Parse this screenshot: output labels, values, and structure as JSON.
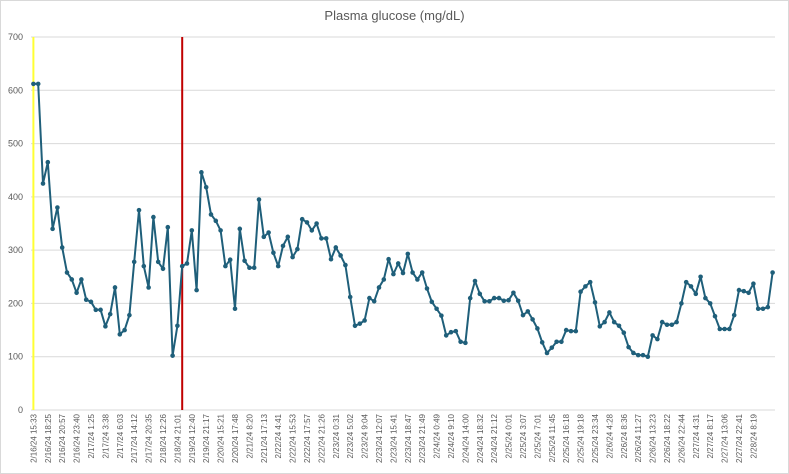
{
  "chart_data": {
    "type": "line",
    "title": "Plasma glucose (mg/dL)",
    "ylim": [
      0,
      700
    ],
    "y_ticks": [
      0,
      100,
      200,
      300,
      400,
      500,
      600,
      700
    ],
    "grid": "horizontal",
    "legend": "none",
    "x_tick_labels": [
      "2/16/24 15:33",
      "2/16/24 18:25",
      "2/16/24 20:57",
      "2/16/24 23:40",
      "2/17/24 1:25",
      "2/17/24 3:38",
      "2/17/24 6:03",
      "2/17/24 14:12",
      "2/17/24 20:35",
      "2/18/24 12:26",
      "2/18/24 21:01",
      "2/19/24 12:40",
      "2/19/24 21:17",
      "2/20/24 15:21",
      "2/20/24 17:48",
      "2/21/24 8:20",
      "2/21/24 17:13",
      "2/22/24 4:41",
      "2/22/24 15:53",
      "2/22/24 17:57",
      "2/22/24 21:26",
      "2/23/24 0:31",
      "2/23/24 5:02",
      "2/23/24 9:04",
      "2/23/24 12:07",
      "2/23/24 15:41",
      "2/23/24 18:47",
      "2/23/24 21:49",
      "2/24/24 0:49",
      "2/24/24 9:10",
      "2/24/24 14:00",
      "2/24/24 18:32",
      "2/24/24 21:12",
      "2/25/24 0:01",
      "2/25/24 3:07",
      "2/25/24 7:01",
      "2/25/24 11:45",
      "2/25/24 16:18",
      "2/25/24 19:18",
      "2/25/24 23:34",
      "2/26/24 4:28",
      "2/26/24 8:36",
      "2/26/24 11:27",
      "2/26/24 13:23",
      "2/26/24 18:22",
      "2/26/24 22:44",
      "2/27/24 4:31",
      "2/27/24 8:17",
      "2/27/24 13:06",
      "2/27/24 22:41",
      "2/28/24 8:19"
    ],
    "series": [
      {
        "values": [
          612,
          612,
          425,
          465,
          340,
          380,
          305,
          258,
          245,
          220,
          245,
          207,
          203,
          188,
          188,
          157,
          180,
          230,
          142,
          150,
          178,
          278,
          375,
          270,
          230,
          362,
          278,
          265,
          343,
          102,
          158,
          270,
          275,
          337,
          225,
          446,
          418,
          367,
          355,
          337,
          270,
          282,
          190,
          340,
          280,
          267,
          267,
          395,
          325,
          333,
          295,
          270,
          308,
          325,
          287,
          302,
          358,
          352,
          337,
          350,
          322,
          322,
          283,
          305,
          290,
          272,
          212,
          158,
          162,
          168,
          210,
          204,
          230,
          245,
          283,
          255,
          275,
          257,
          293,
          258,
          245,
          258,
          228,
          203,
          190,
          177,
          140,
          146,
          148,
          128,
          126,
          210,
          242,
          218,
          204,
          204,
          210,
          210,
          205,
          206,
          220,
          205,
          178,
          185,
          170,
          153,
          127,
          107,
          117,
          128,
          128,
          150,
          148,
          148,
          222,
          232,
          240,
          202,
          157,
          165,
          183,
          165,
          158,
          145,
          118,
          107,
          103,
          103,
          100,
          140,
          133,
          165,
          160,
          160,
          165,
          200,
          240,
          232,
          218,
          250,
          210,
          200,
          176,
          152,
          152,
          152,
          178,
          225,
          223,
          220,
          237,
          190,
          190,
          193,
          258
        ],
        "color": "#1f5f7a"
      }
    ],
    "reference_lines": [
      {
        "x_index": 0,
        "color": "#ffff33"
      },
      {
        "x_index": 31,
        "color": "#c00000"
      }
    ]
  }
}
